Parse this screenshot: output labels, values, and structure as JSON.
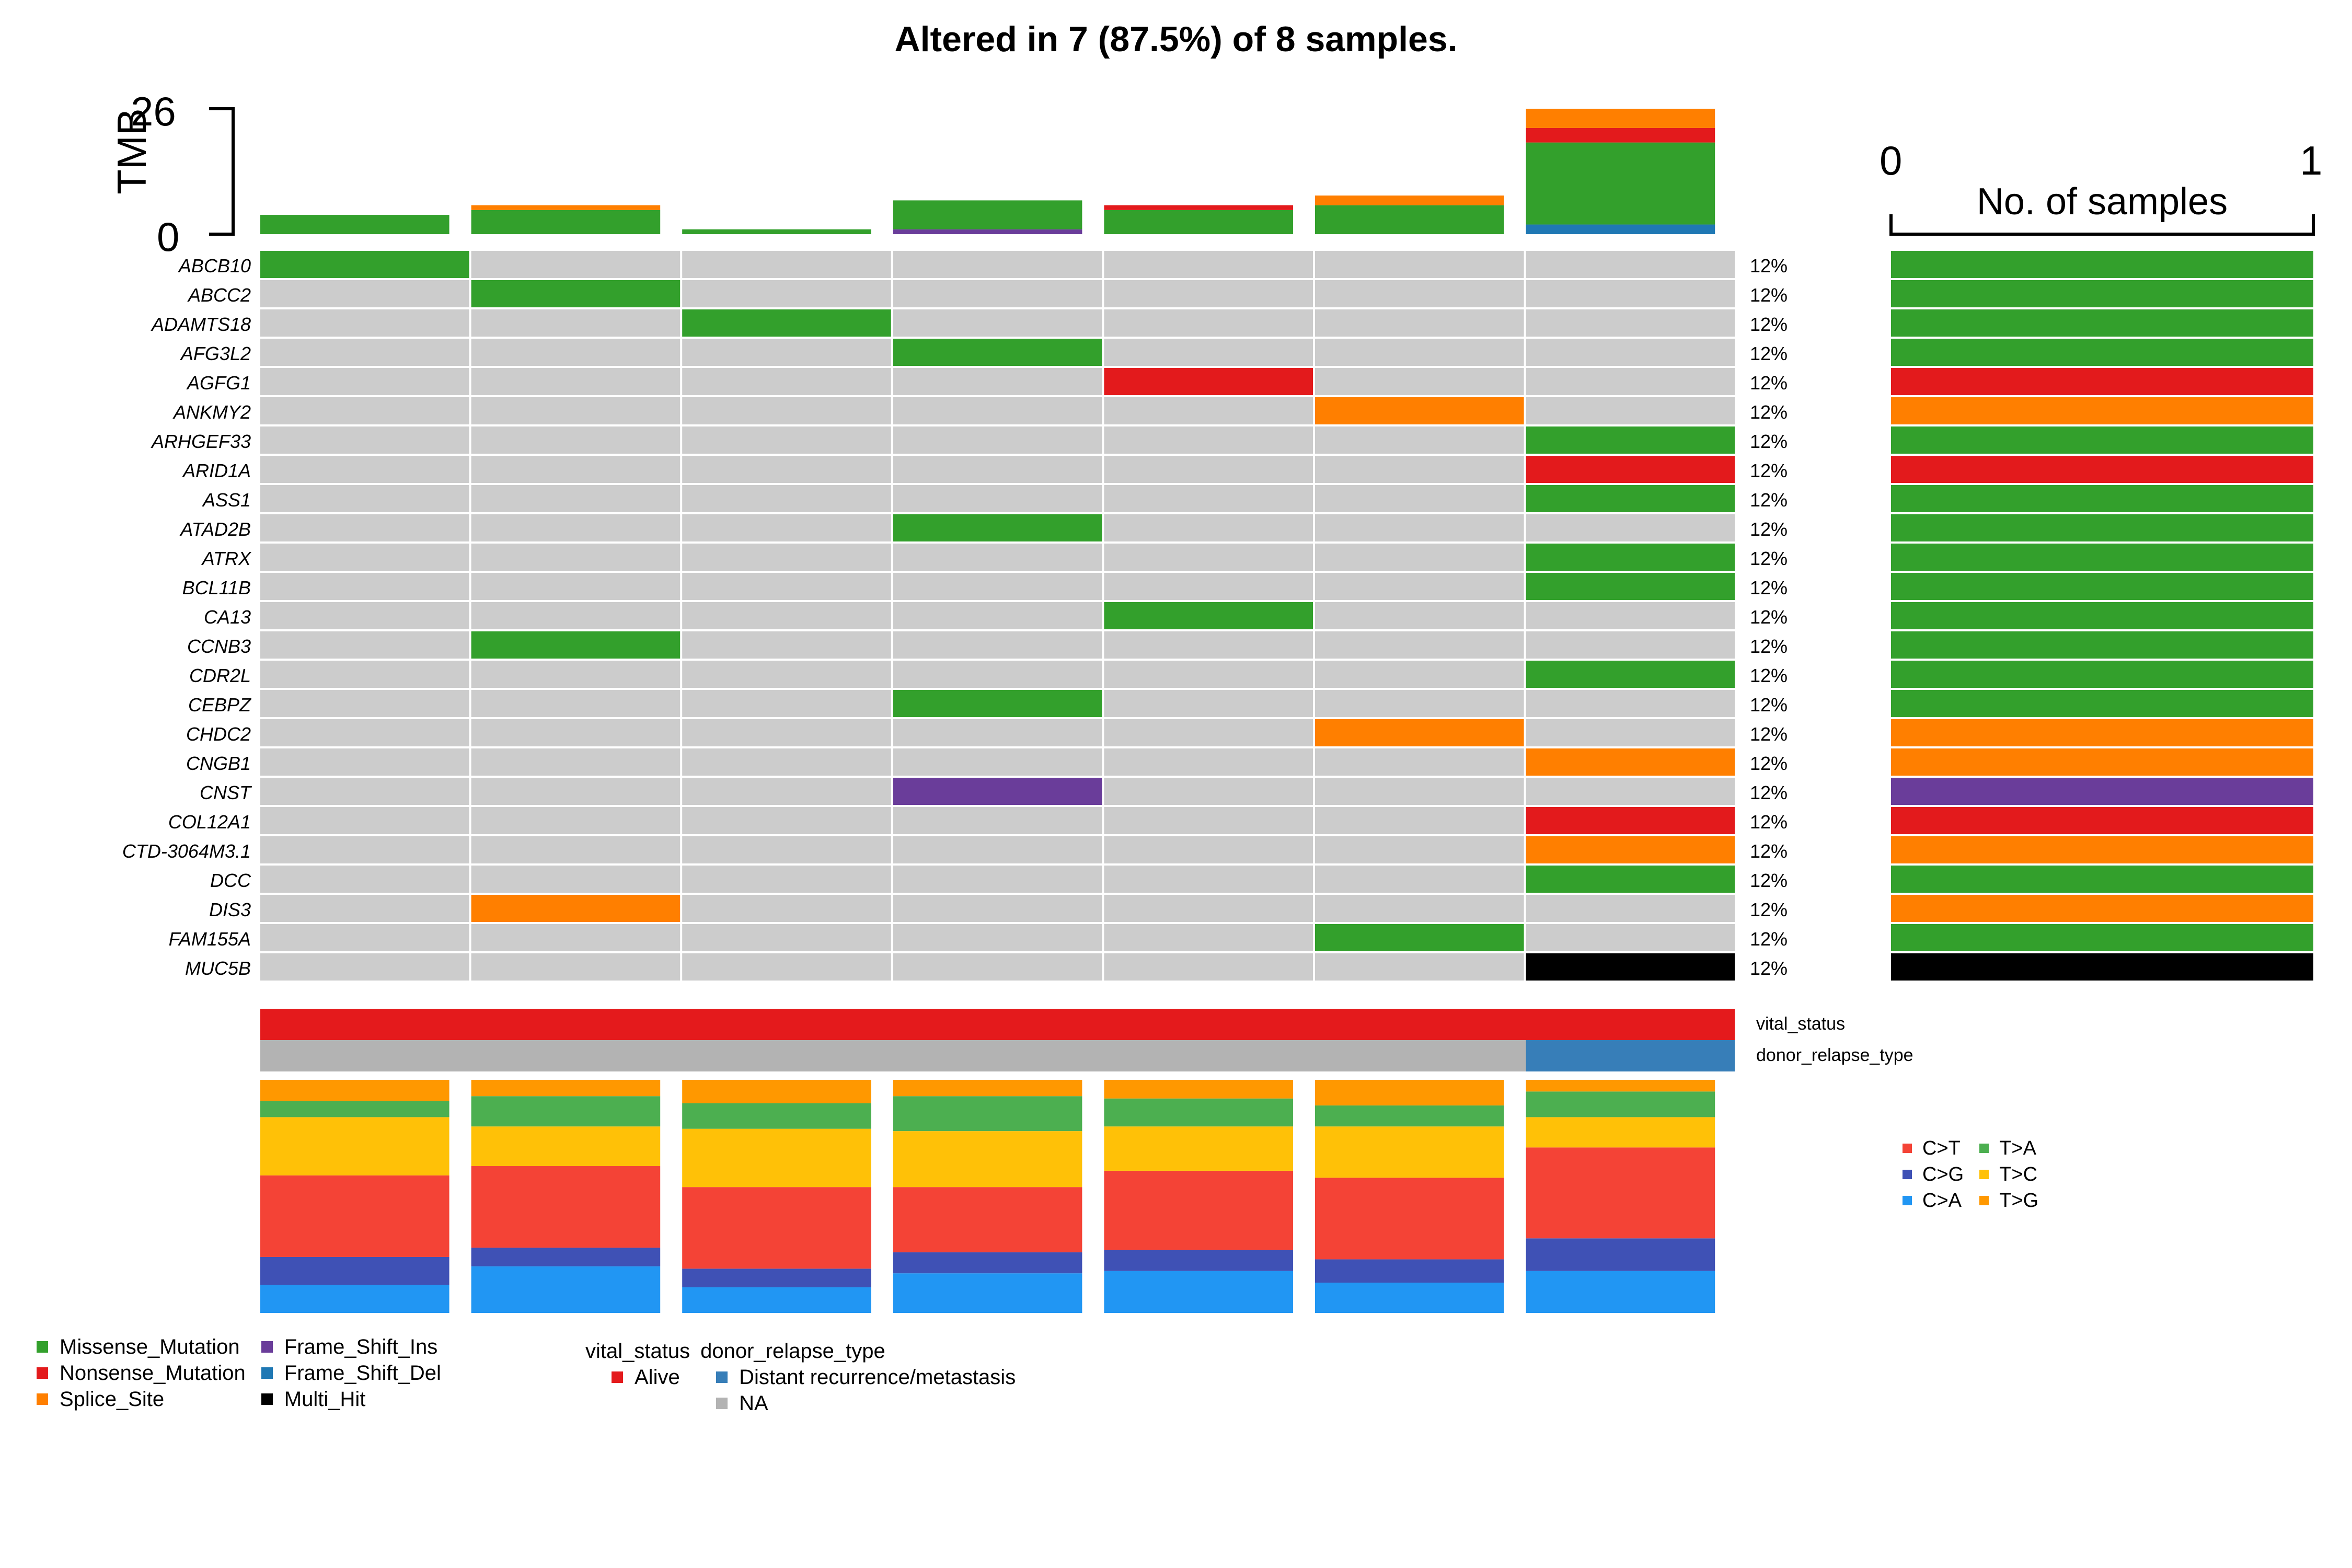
{
  "title": "Altered in 7 (87.5%) of 8 samples.",
  "colors": {
    "Missense_Mutation": "#33a02c",
    "Nonsense_Mutation": "#e31a1c",
    "Splice_Site": "#ff7f00",
    "Frame_Shift_Ins": "#6a3d9a",
    "Frame_Shift_Del": "#1f78b4",
    "Multi_Hit": "#000000",
    "empty": "#cccccc",
    "Alive": "#e41a1c",
    "Distant recurrence/metastasis": "#377eb8",
    "NA": "#b3b3b3",
    "C>T": "#f44336",
    "C>G": "#3f51b5",
    "C>A": "#2196f3",
    "T>A": "#4caf50",
    "T>C": "#ffc107",
    "T>G": "#ff9800"
  },
  "chart_data": {
    "type": "heatmap",
    "title": "Altered in 7 (87.5%) of 8 samples.",
    "tmb": {
      "ylabel": "TMB",
      "ylim": [
        0,
        26
      ],
      "tick_labels": [
        "0",
        "26"
      ],
      "samples": [
        {
          "Missense_Mutation": 4
        },
        {
          "Missense_Mutation": 5,
          "Splice_Site": 1
        },
        {
          "Missense_Mutation": 1
        },
        {
          "Frame_Shift_Ins": 1,
          "Missense_Mutation": 6
        },
        {
          "Missense_Mutation": 5,
          "Nonsense_Mutation": 1
        },
        {
          "Missense_Mutation": 6,
          "Splice_Site": 2
        },
        {
          "Frame_Shift_Del": 2,
          "Missense_Mutation": 17,
          "Nonsense_Mutation": 3,
          "Splice_Site": 4
        }
      ]
    },
    "genes": [
      "ABCB10",
      "ABCC2",
      "ADAMTS18",
      "AFG3L2",
      "AGFG1",
      "ANKMY2",
      "ARHGEF33",
      "ARID1A",
      "ASS1",
      "ATAD2B",
      "ATRX",
      "BCL11B",
      "CA13",
      "CCNB3",
      "CDR2L",
      "CEBPZ",
      "CHDC2",
      "CNGB1",
      "CNST",
      "COL12A1",
      "CTD-3064M3.1",
      "DCC",
      "DIS3",
      "FAM155A",
      "MUC5B"
    ],
    "percent_labels": [
      "12%",
      "12%",
      "12%",
      "12%",
      "12%",
      "12%",
      "12%",
      "12%",
      "12%",
      "12%",
      "12%",
      "12%",
      "12%",
      "12%",
      "12%",
      "12%",
      "12%",
      "12%",
      "12%",
      "12%",
      "12%",
      "12%",
      "12%",
      "12%",
      "12%"
    ],
    "variant_matrix": [
      [
        "Missense_Mutation",
        null,
        null,
        null,
        null,
        null,
        null
      ],
      [
        null,
        "Missense_Mutation",
        null,
        null,
        null,
        null,
        null
      ],
      [
        null,
        null,
        "Missense_Mutation",
        null,
        null,
        null,
        null
      ],
      [
        null,
        null,
        null,
        "Missense_Mutation",
        null,
        null,
        null
      ],
      [
        null,
        null,
        null,
        null,
        "Nonsense_Mutation",
        null,
        null
      ],
      [
        null,
        null,
        null,
        null,
        null,
        "Splice_Site",
        null
      ],
      [
        null,
        null,
        null,
        null,
        null,
        null,
        "Missense_Mutation"
      ],
      [
        null,
        null,
        null,
        null,
        null,
        null,
        "Nonsense_Mutation"
      ],
      [
        null,
        null,
        null,
        null,
        null,
        null,
        "Missense_Mutation"
      ],
      [
        null,
        null,
        null,
        "Missense_Mutation",
        null,
        null,
        null
      ],
      [
        null,
        null,
        null,
        null,
        null,
        null,
        "Missense_Mutation"
      ],
      [
        null,
        null,
        null,
        null,
        null,
        null,
        "Missense_Mutation"
      ],
      [
        null,
        null,
        null,
        null,
        "Missense_Mutation",
        null,
        null
      ],
      [
        null,
        "Missense_Mutation",
        null,
        null,
        null,
        null,
        null
      ],
      [
        null,
        null,
        null,
        null,
        null,
        null,
        "Missense_Mutation"
      ],
      [
        null,
        null,
        null,
        "Missense_Mutation",
        null,
        null,
        null
      ],
      [
        null,
        null,
        null,
        null,
        null,
        "Splice_Site",
        null
      ],
      [
        null,
        null,
        null,
        null,
        null,
        null,
        "Splice_Site"
      ],
      [
        null,
        null,
        null,
        "Frame_Shift_Ins",
        null,
        null,
        null
      ],
      [
        null,
        null,
        null,
        null,
        null,
        null,
        "Nonsense_Mutation"
      ],
      [
        null,
        null,
        null,
        null,
        null,
        null,
        "Splice_Site"
      ],
      [
        null,
        null,
        null,
        null,
        null,
        null,
        "Missense_Mutation"
      ],
      [
        null,
        "Splice_Site",
        null,
        null,
        null,
        null,
        null
      ],
      [
        null,
        null,
        null,
        null,
        null,
        "Missense_Mutation",
        null
      ],
      [
        null,
        null,
        null,
        null,
        null,
        null,
        "Multi_Hit"
      ]
    ],
    "gene_sample_counts": [
      1,
      1,
      1,
      1,
      1,
      1,
      1,
      1,
      1,
      1,
      1,
      1,
      1,
      1,
      1,
      1,
      1,
      1,
      1,
      1,
      1,
      1,
      1,
      1,
      1
    ],
    "gene_bar_colors": [
      "Missense_Mutation",
      "Missense_Mutation",
      "Missense_Mutation",
      "Missense_Mutation",
      "Nonsense_Mutation",
      "Splice_Site",
      "Missense_Mutation",
      "Nonsense_Mutation",
      "Missense_Mutation",
      "Missense_Mutation",
      "Missense_Mutation",
      "Missense_Mutation",
      "Missense_Mutation",
      "Missense_Mutation",
      "Missense_Mutation",
      "Missense_Mutation",
      "Splice_Site",
      "Splice_Site",
      "Frame_Shift_Ins",
      "Nonsense_Mutation",
      "Splice_Site",
      "Missense_Mutation",
      "Splice_Site",
      "Missense_Mutation",
      "Multi_Hit"
    ],
    "side_axis": {
      "label": "No. of samples",
      "tick_labels": [
        "0",
        "1"
      ],
      "xlim": [
        0,
        1
      ]
    },
    "annotations": {
      "vital_status": [
        "Alive",
        "Alive",
        "Alive",
        "Alive",
        "Alive",
        "Alive",
        "Alive"
      ],
      "donor_relapse_type": [
        "NA",
        "NA",
        "NA",
        "NA",
        "NA",
        "NA",
        "Distant recurrence/metastasis"
      ]
    },
    "titv": {
      "order": [
        "C>A",
        "C>G",
        "C>T",
        "T>C",
        "T>A",
        "T>G"
      ],
      "fractions": [
        [
          0.12,
          0.12,
          0.35,
          0.25,
          0.07,
          0.09
        ],
        [
          0.2,
          0.08,
          0.35,
          0.17,
          0.13,
          0.07
        ],
        [
          0.11,
          0.08,
          0.35,
          0.25,
          0.11,
          0.1
        ],
        [
          0.17,
          0.09,
          0.28,
          0.24,
          0.15,
          0.07
        ],
        [
          0.18,
          0.09,
          0.34,
          0.19,
          0.12,
          0.08
        ],
        [
          0.13,
          0.1,
          0.35,
          0.22,
          0.09,
          0.11
        ],
        [
          0.18,
          0.14,
          0.39,
          0.13,
          0.11,
          0.05
        ]
      ]
    }
  },
  "annotation_labels": {
    "vital_status": "vital_status",
    "donor_relapse_type": "donor_relapse_type"
  },
  "legend_variants": {
    "col1": [
      "Missense_Mutation",
      "Nonsense_Mutation",
      "Splice_Site"
    ],
    "col2": [
      "Frame_Shift_Ins",
      "Frame_Shift_Del",
      "Multi_Hit"
    ]
  },
  "legend_annotations": {
    "vital_status_title": "vital_status",
    "vital_status_items": [
      "Alive"
    ],
    "donor_relapse_title": "donor_relapse_type",
    "donor_relapse_items": [
      "Distant recurrence/metastasis",
      "NA"
    ]
  },
  "legend_titv": {
    "col1": [
      "C>T",
      "C>G",
      "C>A"
    ],
    "col2": [
      "T>A",
      "T>C",
      "T>G"
    ]
  }
}
